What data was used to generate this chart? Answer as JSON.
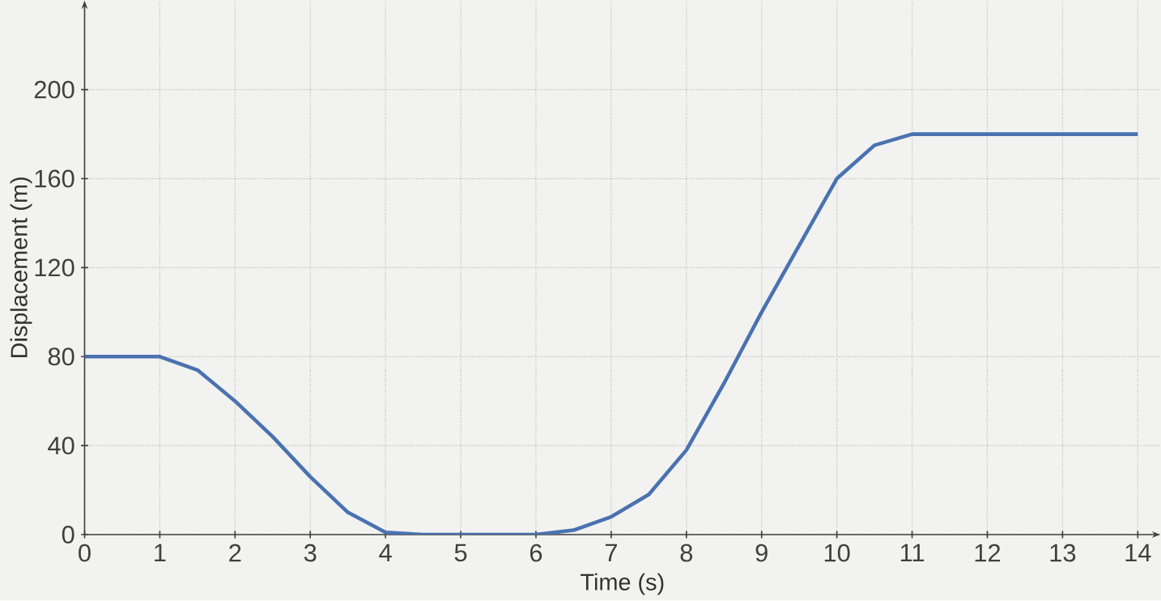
{
  "chart_data": {
    "type": "line",
    "xlabel": "Time (s)",
    "ylabel": "Displacement (m)",
    "x": [
      0,
      1,
      1.5,
      2,
      2.5,
      3,
      3.5,
      4,
      4.5,
      6,
      6.5,
      7,
      7.5,
      8,
      8.5,
      9,
      9.5,
      10,
      10.5,
      11,
      14
    ],
    "series": [
      {
        "color": "#4a72b0",
        "values": [
          80,
          80,
          74,
          60,
          44,
          26,
          10,
          1,
          0,
          0,
          2,
          8,
          18,
          38,
          68,
          100,
          130,
          160,
          175,
          180,
          180
        ]
      }
    ],
    "xlim": [
      0,
      14.3
    ],
    "ylim": [
      0,
      240
    ],
    "xticks": [
      0,
      1,
      2,
      3,
      4,
      5,
      6,
      7,
      8,
      9,
      10,
      11,
      12,
      13,
      14
    ],
    "yticks": [
      0,
      40,
      80,
      120,
      160,
      200
    ],
    "grid": true,
    "line_style": "solid",
    "marker": "none"
  }
}
